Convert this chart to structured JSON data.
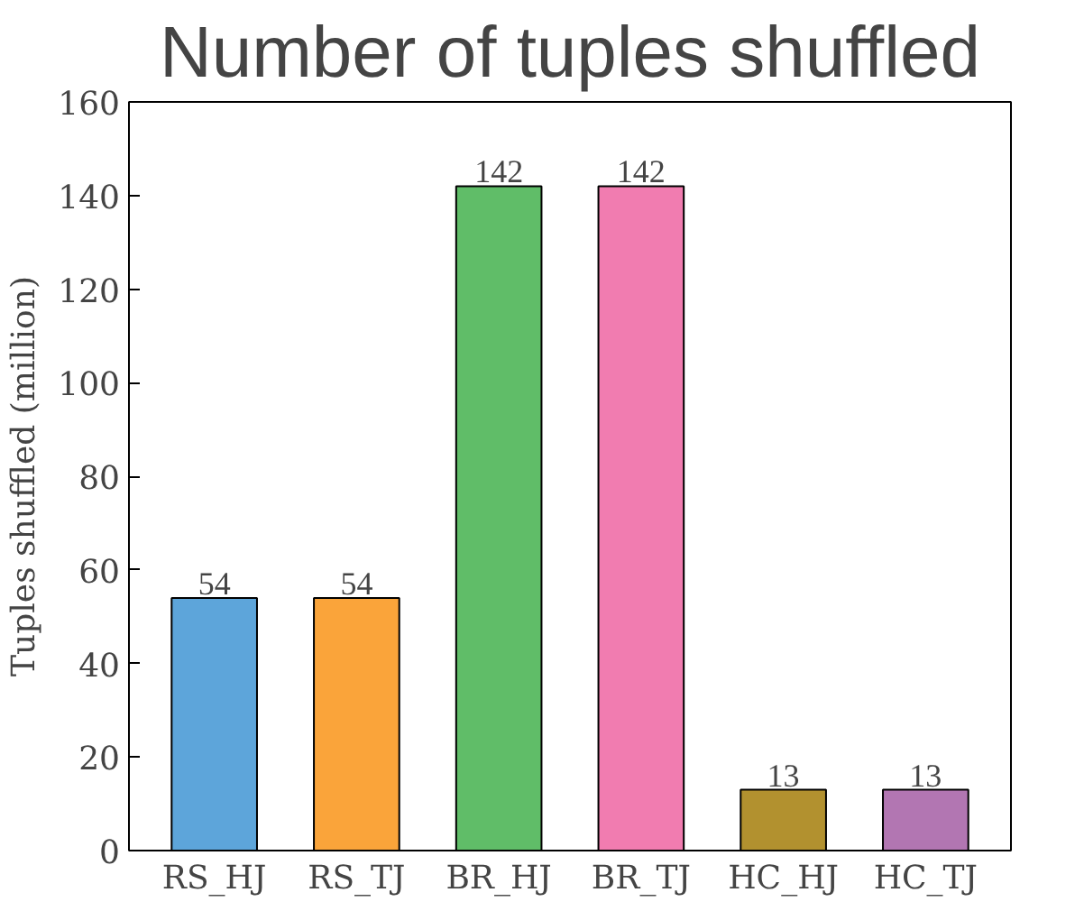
{
  "chart_data": {
    "type": "bar",
    "title": "Number of tuples shuffled",
    "ylabel": "Tuples shuffled (million)",
    "categories": [
      "RS_HJ",
      "RS_TJ",
      "BR_HJ",
      "BR_TJ",
      "HC_HJ",
      "HC_TJ"
    ],
    "values": [
      54,
      54,
      142,
      142,
      13,
      13
    ],
    "colors": [
      "#5da5da",
      "#faa43a",
      "#60bd68",
      "#f17cb0",
      "#b2912f",
      "#b276b2"
    ],
    "ylim": [
      0,
      160
    ],
    "yticks": [
      0,
      20,
      40,
      60,
      80,
      100,
      120,
      140,
      160
    ],
    "grid": false,
    "data_labels": true
  }
}
